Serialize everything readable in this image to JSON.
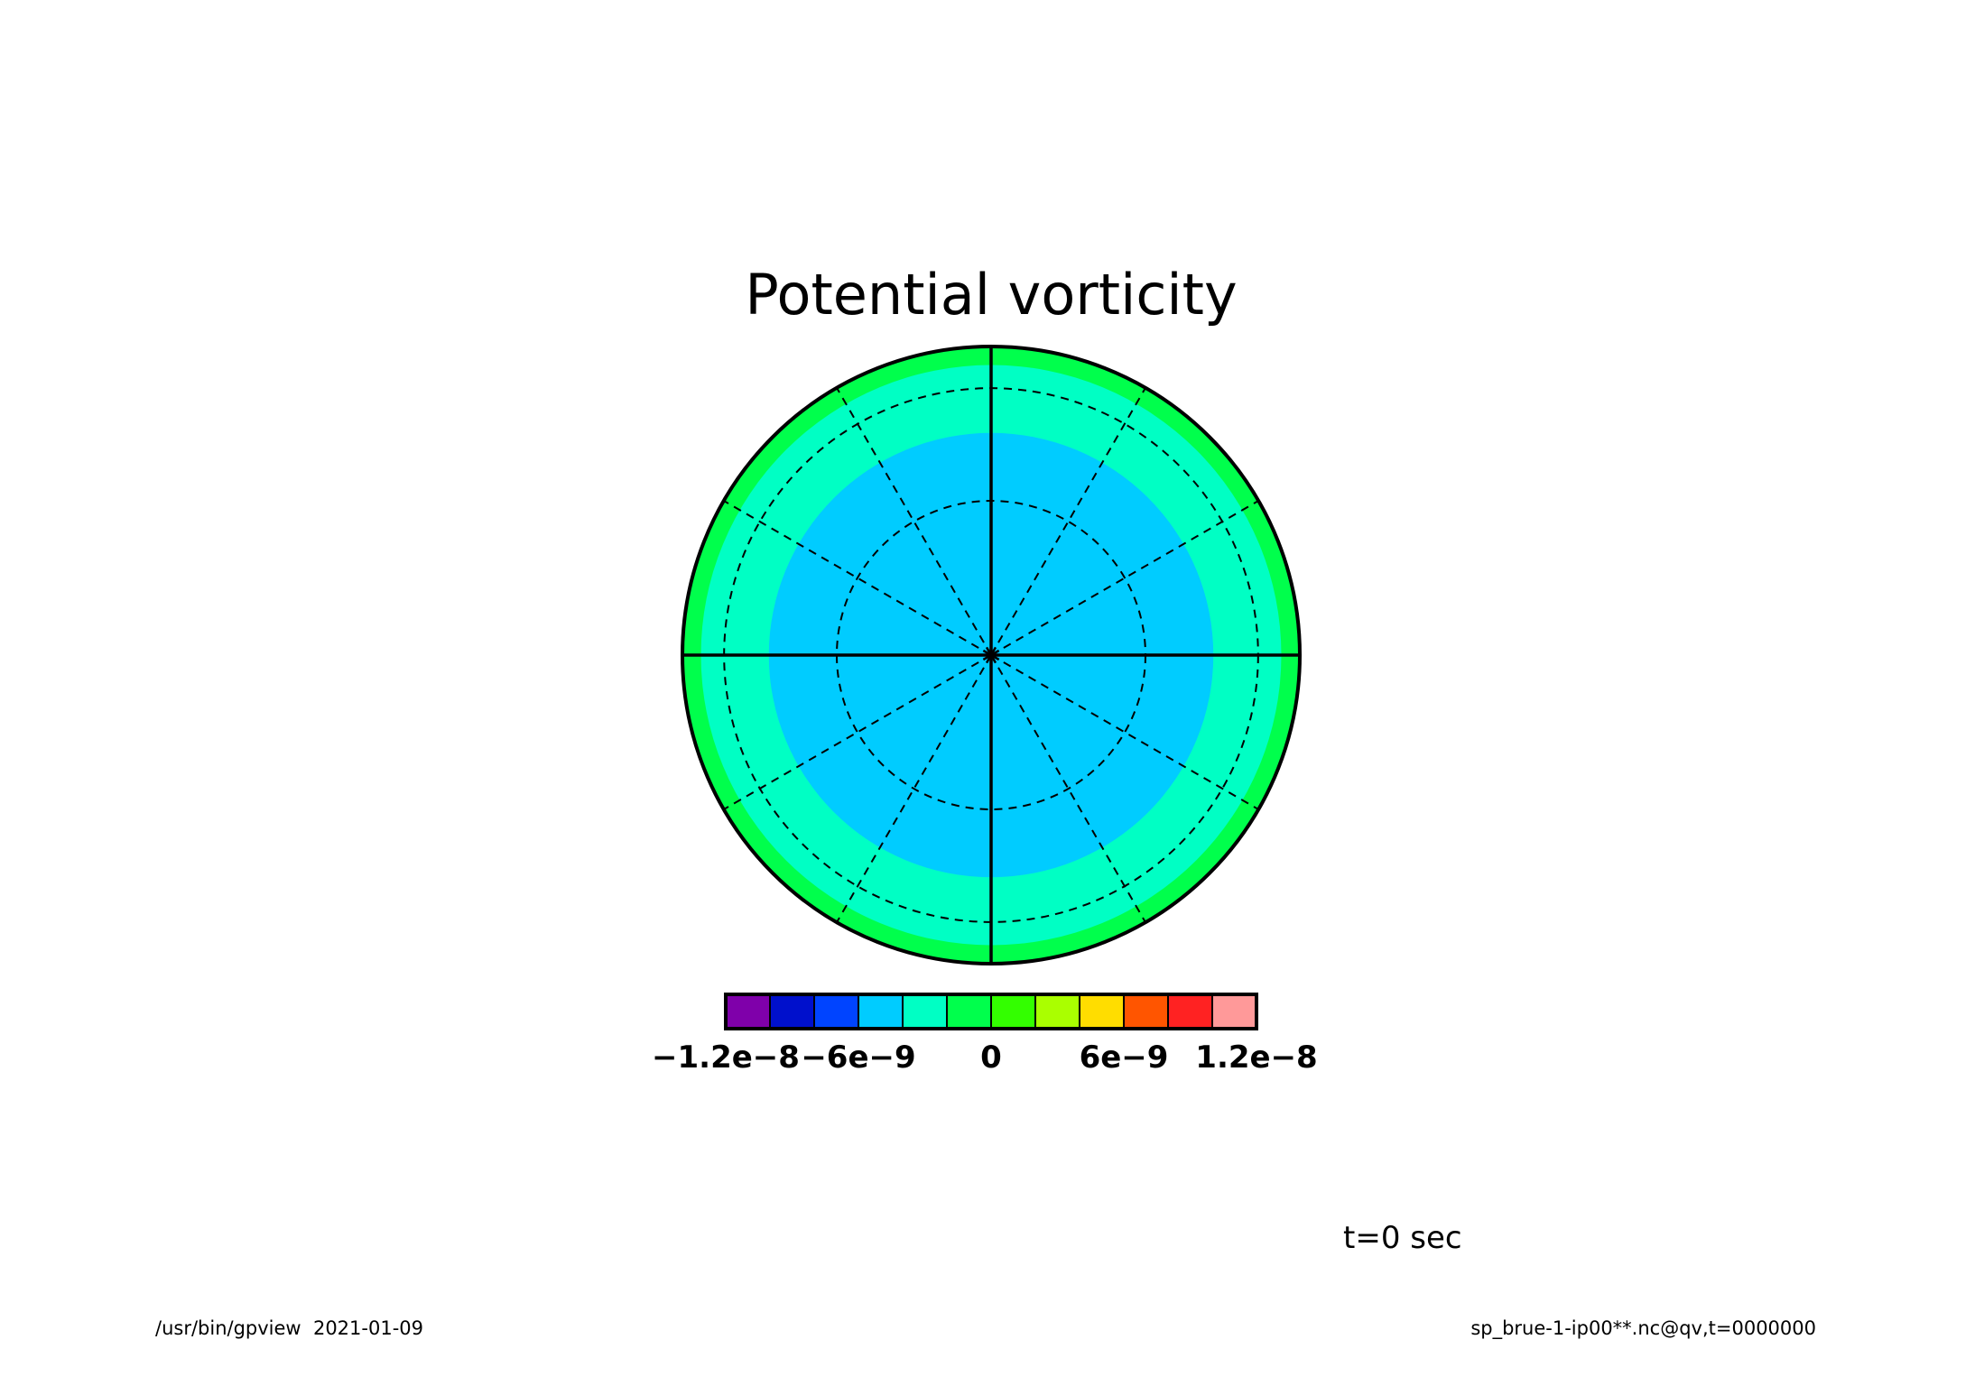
{
  "chart_data": {
    "type": "heatmap",
    "projection": "polar stereographic",
    "title": "Potential vorticity",
    "annotation": "t=0 sec",
    "footer_left": "/usr/bin/gpview  2021-01-09",
    "footer_right": "sp_brue-1-ip00**.nc@qv,t=0000000",
    "colorbar": {
      "orientation": "horizontal",
      "colors": [
        "#7f00aa",
        "#0010cc",
        "#0044ff",
        "#00ccff",
        "#00ffc4",
        "#00ff4c",
        "#33ff00",
        "#aaff00",
        "#ffdd00",
        "#ff5500",
        "#ff2222",
        "#ff9999"
      ],
      "tick_labels": [
        "−1.2e−8",
        "−6e−9",
        "0",
        "6e−9",
        "1.2e−8"
      ]
    },
    "bands": [
      {
        "color": "#00ccff",
        "outer_radius_fraction": 0.72
      },
      {
        "color": "#00ffc4",
        "outer_radius_fraction": 0.94
      },
      {
        "color": "#00ff4c",
        "outer_radius_fraction": 1.0
      }
    ],
    "grid": {
      "latitude_circles": 2,
      "meridian_spacing_deg": 30
    }
  }
}
